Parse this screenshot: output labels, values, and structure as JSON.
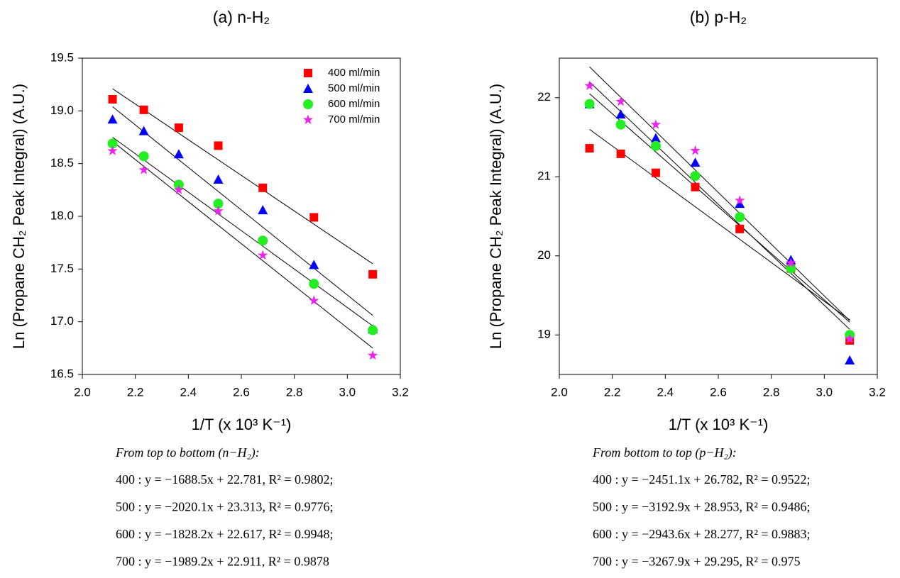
{
  "chart_data": [
    {
      "type": "scatter",
      "title": "(a) n-H₂",
      "xlabel": "1/T (x 10³ K⁻¹)",
      "ylabel": "Ln (Propane CH₂ Peak Integral) (A.U.)",
      "x": [
        2.114,
        2.232,
        2.364,
        2.513,
        2.681,
        2.874,
        3.096
      ],
      "xlim": [
        2.0,
        3.2
      ],
      "xticks": [
        {
          "value": 2,
          "label": "2.0"
        },
        2.2,
        2.4,
        2.6,
        2.8,
        {
          "value": 3,
          "label": "3.0"
        },
        3.2
      ],
      "ylim": [
        16.5,
        19.5
      ],
      "yticks": [
        16.5,
        {
          "value": 17,
          "label": "17.0"
        },
        17.5,
        {
          "value": 18,
          "label": "18.0"
        },
        18.5,
        {
          "value": 19,
          "label": "19.0"
        },
        19.5
      ],
      "legend": "upper right",
      "series": [
        {
          "name": "400 ml/min",
          "color": "#ff0000",
          "marker": "square",
          "values": [
            19.11,
            19.01,
            18.84,
            18.67,
            18.27,
            17.99,
            17.45
          ],
          "fit": {
            "x": [
              2.114,
              3.096
            ],
            "y": [
              19.21,
              17.55
            ]
          }
        },
        {
          "name": "500 ml/min",
          "color": "#0000ff",
          "marker": "triangle",
          "values": [
            18.92,
            18.81,
            18.59,
            18.35,
            18.06,
            17.54,
            16.93
          ],
          "fit": {
            "x": [
              2.114,
              3.096
            ],
            "y": [
              19.04,
              17.06
            ]
          }
        },
        {
          "name": "600 ml/min",
          "color": "#22ee22",
          "marker": "circle",
          "values": [
            18.69,
            18.57,
            18.3,
            18.12,
            17.77,
            17.36,
            16.92
          ],
          "fit": {
            "x": [
              2.114,
              3.096
            ],
            "y": [
              18.75,
              16.96
            ]
          }
        },
        {
          "name": "700 ml/min",
          "color": "#ee22ee",
          "marker": "star",
          "values": [
            18.62,
            18.44,
            18.25,
            18.05,
            17.63,
            17.2,
            16.68
          ],
          "fit": {
            "x": [
              2.114,
              3.096
            ],
            "y": [
              18.71,
              16.75
            ]
          }
        }
      ],
      "equations_heading": "From top to bottom (n−H₂):",
      "equations": [
        "400 : y = −1688.5x + 22.781,  R² = 0.9802;",
        "500 : y = −2020.1x + 23.313,  R² = 0.9776;",
        "600 : y = −1828.2x + 22.617,  R² = 0.9948;",
        "700 : y = −1989.2x + 22.911,  R² = 0.9878"
      ]
    },
    {
      "type": "scatter",
      "title": "(b) p-H₂",
      "xlabel": "1/T (x 10³ K⁻¹)",
      "ylabel": "Ln (Propane CH₂ Peak Integral) (A.U.)",
      "x": [
        2.114,
        2.232,
        2.364,
        2.513,
        2.681,
        2.874,
        3.096
      ],
      "xlim": [
        2.0,
        3.2
      ],
      "xticks": [
        {
          "value": 2,
          "label": "2.0"
        },
        2.2,
        2.4,
        2.6,
        2.8,
        {
          "value": 3,
          "label": "3.0"
        },
        3.2
      ],
      "ylim": [
        18.5,
        22.5
      ],
      "yticks": [
        19,
        20,
        21,
        22
      ],
      "series": [
        {
          "color": "#ff0000",
          "marker": "square",
          "values": [
            21.36,
            21.29,
            21.05,
            20.87,
            20.34,
            19.84,
            18.93
          ],
          "fit": {
            "x": [
              2.114,
              3.096
            ],
            "y": [
              21.6,
              19.19
            ]
          }
        },
        {
          "color": "#0000ff",
          "marker": "triangle",
          "values": [
            21.92,
            21.79,
            21.49,
            21.18,
            20.66,
            19.95,
            18.68
          ],
          "fit": {
            "x": [
              2.114,
              3.096
            ],
            "y": [
              22.2,
              19.07
            ]
          }
        },
        {
          "color": "#22ee22",
          "marker": "circle",
          "values": [
            21.92,
            21.66,
            21.39,
            21.01,
            20.49,
            19.84,
            19.0
          ],
          "fit": {
            "x": [
              2.114,
              3.096
            ],
            "y": [
              22.05,
              19.16
            ]
          }
        },
        {
          "color": "#ee22ee",
          "marker": "star",
          "values": [
            22.15,
            21.95,
            21.66,
            21.33,
            20.7,
            19.91,
            18.95
          ],
          "fit": {
            "x": [
              2.114,
              3.096
            ],
            "y": [
              22.39,
              19.18
            ]
          }
        }
      ],
      "equations_heading": "From bottom to top (p−H₂):",
      "equations": [
        "400 : y = −2451.1x + 26.782,  R² = 0.9522;",
        "500 : y = −3192.9x + 28.953,  R² = 0.9486;",
        "600 : y = −2943.6x + 28.277,  R² = 0.9883;",
        "700 : y = −3267.9x + 29.295,  R² = 0.975"
      ]
    }
  ]
}
